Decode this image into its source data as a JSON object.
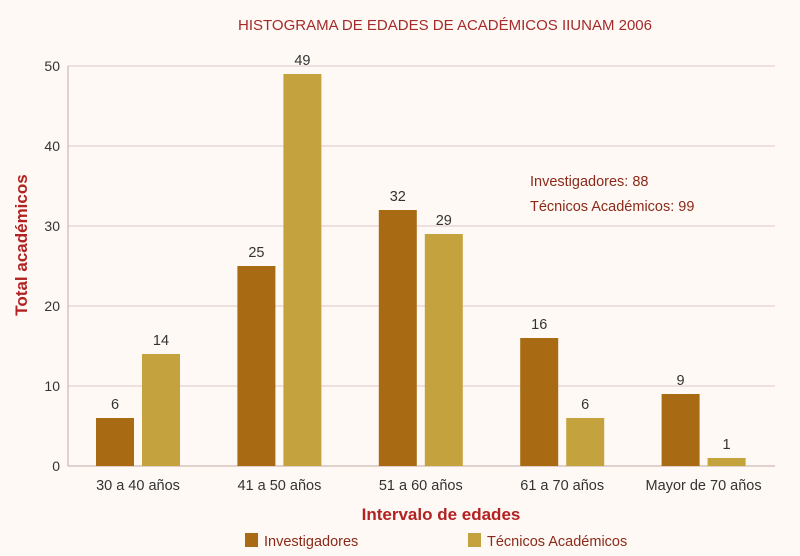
{
  "chart_data": {
    "type": "bar",
    "title": "HISTOGRAMA DE EDADES DE ACADÉMICOS IIUNAM 2006",
    "xlabel": "Intervalo de edades",
    "ylabel": "Total académicos",
    "ylim": [
      0,
      50
    ],
    "yticks": [
      0,
      10,
      20,
      30,
      40,
      50
    ],
    "grid": true,
    "legend_position": "bottom",
    "categories": [
      "30 a 40 años",
      "41 a 50 años",
      "51 a 60 años",
      "61 a 70 años",
      "Mayor de 70 años"
    ],
    "series": [
      {
        "name": "Investigadores",
        "values": [
          6,
          25,
          32,
          16,
          9
        ],
        "color": "#a86b14"
      },
      {
        "name": "Técnicos Académicos",
        "values": [
          14,
          49,
          29,
          6,
          1
        ],
        "color": "#c4a33f"
      }
    ],
    "annotations": [
      "Investigadores: 88",
      "Técnicos Académicos: 99"
    ]
  }
}
